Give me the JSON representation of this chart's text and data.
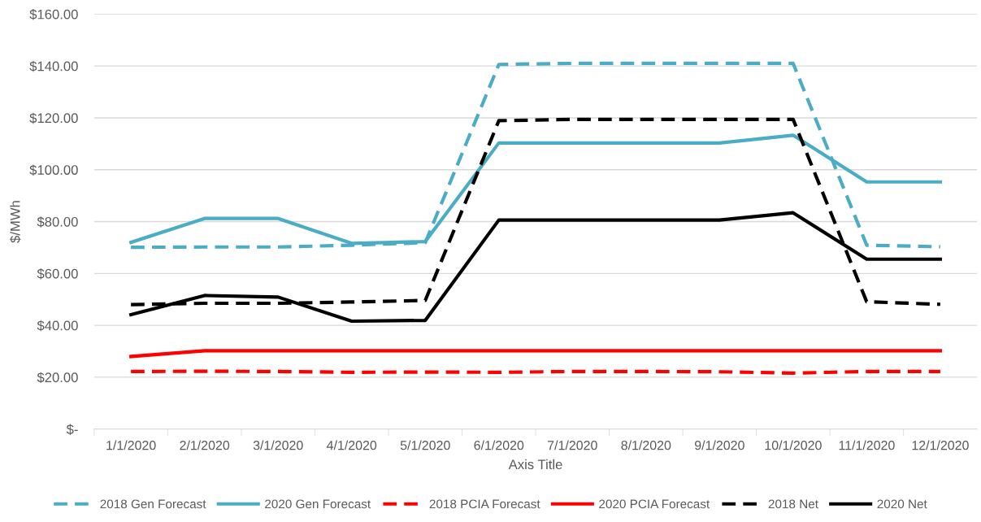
{
  "chart_data": {
    "type": "line",
    "xlabel": "Axis Title",
    "ylabel": "$/MWh",
    "categories": [
      "1/1/2020",
      "2/1/2020",
      "3/1/2020",
      "4/1/2020",
      "5/1/2020",
      "6/1/2020",
      "7/1/2020",
      "8/1/2020",
      "9/1/2020",
      "10/1/2020",
      "11/1/2020",
      "12/1/2020"
    ],
    "ylim": [
      0,
      160
    ],
    "yticks": [
      {
        "value": 0,
        "label": "$-"
      },
      {
        "value": 20,
        "label": "$20.00"
      },
      {
        "value": 40,
        "label": "$40.00"
      },
      {
        "value": 60,
        "label": "$60.00"
      },
      {
        "value": 80,
        "label": "$80.00"
      },
      {
        "value": 100,
        "label": "$100.00"
      },
      {
        "value": 120,
        "label": "$120.00"
      },
      {
        "value": 140,
        "label": "$140.00"
      },
      {
        "value": 160,
        "label": "$160.00"
      }
    ],
    "grid": "y",
    "legend": "bottom",
    "marker": "none",
    "series": [
      {
        "name": "2018 Gen Forecast",
        "color": "#4bacc6",
        "line_style": "dashed",
        "values": [
          70.1,
          70.2,
          70.2,
          70.9,
          71.9,
          140.6,
          141,
          141,
          141,
          141,
          70.9,
          70.3
        ]
      },
      {
        "name": "2020 Gen Forecast",
        "color": "#4bacc6",
        "line_style": "solid",
        "values": [
          72,
          81.2,
          81.2,
          71.6,
          72.3,
          110.3,
          110.3,
          110.3,
          110.3,
          113.3,
          95.3,
          95.3
        ]
      },
      {
        "name": "2018 PCIA Forecast",
        "color": "#ff0000",
        "line_style": "dashed",
        "values": [
          22.2,
          22.3,
          22.2,
          21.9,
          22.0,
          21.9,
          22.2,
          22.2,
          22.1,
          21.6,
          22.2,
          22.2
        ]
      },
      {
        "name": "2020 PCIA Forecast",
        "color": "#ff0000",
        "line_style": "solid",
        "values": [
          28.0,
          30.2,
          30.2,
          30.2,
          30.2,
          30.2,
          30.2,
          30.2,
          30.2,
          30.2,
          30.2,
          30.2
        ]
      },
      {
        "name": "2018 Net",
        "color": "#000000",
        "line_style": "dashed",
        "values": [
          48.0,
          48.5,
          48.5,
          49.0,
          49.6,
          118.9,
          119.4,
          119.4,
          119.4,
          119.4,
          49.1,
          48.1
        ]
      },
      {
        "name": "2020 Net",
        "color": "#000000",
        "line_style": "solid",
        "values": [
          44.1,
          51.5,
          50.9,
          41.6,
          41.9,
          80.6,
          80.6,
          80.6,
          80.6,
          83.4,
          65.5,
          65.5
        ]
      }
    ]
  }
}
